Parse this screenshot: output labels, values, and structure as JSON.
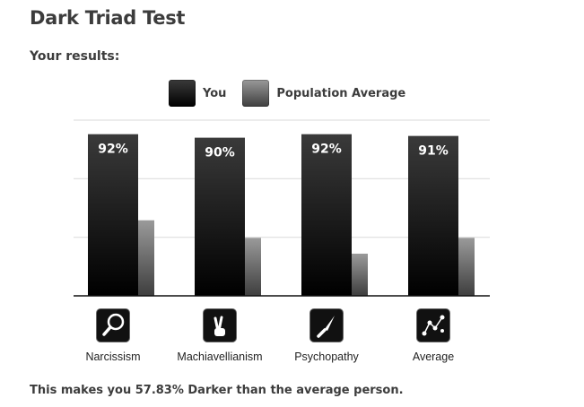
{
  "title": "Dark Triad Test",
  "subtitle": "Your results:",
  "legend": {
    "you": "You",
    "population": "Population Average"
  },
  "footer": "This makes you 57.83% Darker than the average person.",
  "icons": [
    "magnifier-icon",
    "crossed-fingers-icon",
    "knife-icon",
    "constellation-icon"
  ],
  "colors": {
    "you_top": "#3a3a3a",
    "you_bottom": "#000000",
    "pop_top": "#9a9a9a",
    "pop_bottom": "#3e3e3e",
    "grid": "#d9d9d9",
    "axis": "#111111"
  },
  "chart_data": {
    "type": "bar",
    "categories": [
      "Narcissism",
      "Machiavellianism",
      "Psychopathy",
      "Average"
    ],
    "series": [
      {
        "name": "You",
        "values": [
          92,
          90,
          92,
          91
        ]
      },
      {
        "name": "Population Average",
        "values": [
          43,
          33,
          24,
          33
        ]
      }
    ],
    "data_labels": [
      "92%",
      "90%",
      "92%",
      "91%"
    ],
    "ylim": [
      0,
      100
    ],
    "grid": true,
    "legend_position": "top"
  }
}
